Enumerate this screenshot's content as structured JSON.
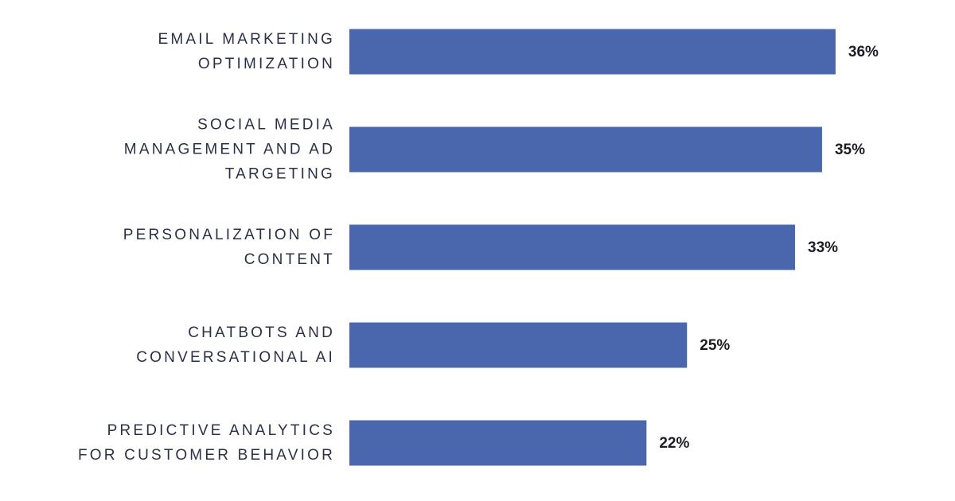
{
  "chart_data": {
    "type": "bar",
    "orientation": "horizontal",
    "categories": [
      "EMAIL MARKETING\nOPTIMIZATION",
      "SOCIAL MEDIA\nMANAGEMENT AND AD\nTARGETING",
      "PERSONALIZATION OF\nCONTENT",
      "CHATBOTS AND\nCONVERSATIONAL AI",
      "PREDICTIVE ANALYTICS\nFOR CUSTOMER BEHAVIOR"
    ],
    "values": [
      36,
      35,
      33,
      25,
      22
    ],
    "value_labels": [
      "36%",
      "35%",
      "33%",
      "25%",
      "22%"
    ],
    "color": "#4a67ae"
  }
}
